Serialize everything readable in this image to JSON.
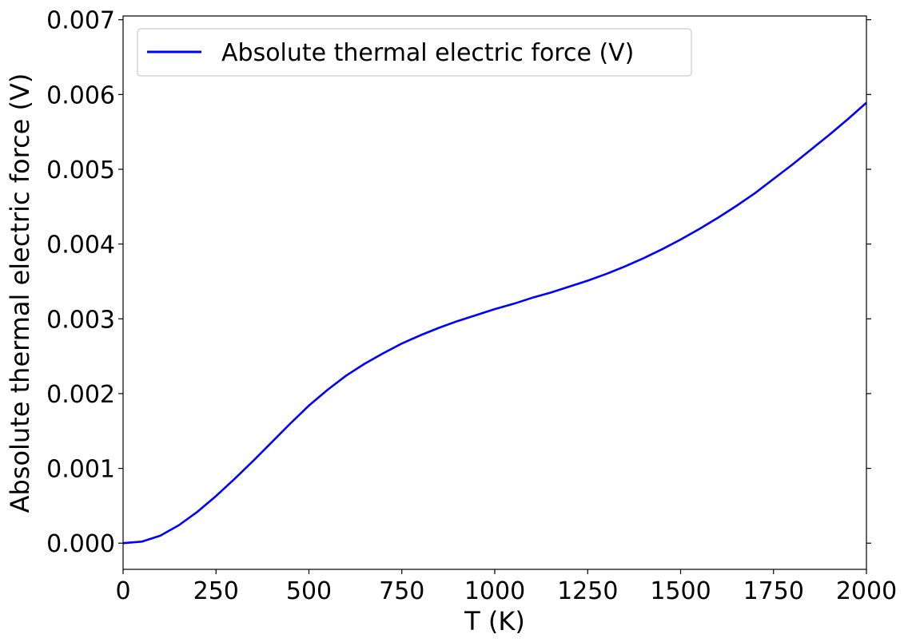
{
  "chart_data": {
    "type": "line",
    "xlabel": "T (K)",
    "ylabel": "Absolute thermal electric force (V)",
    "xlim": [
      0,
      2000
    ],
    "ylim": [
      -0.00035,
      0.00705
    ],
    "x_ticks": [
      0,
      250,
      500,
      750,
      1000,
      1250,
      1500,
      1750,
      2000
    ],
    "x_tick_labels": [
      "0",
      "250",
      "500",
      "750",
      "1000",
      "1250",
      "1500",
      "1750",
      "2000"
    ],
    "y_ticks": [
      0,
      0.001,
      0.002,
      0.003,
      0.004,
      0.005,
      0.006,
      0.007
    ],
    "y_tick_labels": [
      "0.000",
      "0.001",
      "0.002",
      "0.003",
      "0.004",
      "0.005",
      "0.006",
      "0.007"
    ],
    "grid": false,
    "legend_position": "top-left",
    "series": [
      {
        "name": "Absolute thermal electric force (V)",
        "color": "#0000ff",
        "x": [
          0,
          50,
          100,
          150,
          200,
          250,
          300,
          350,
          400,
          450,
          500,
          550,
          600,
          650,
          700,
          750,
          800,
          850,
          900,
          950,
          1000,
          1050,
          1100,
          1150,
          1200,
          1250,
          1300,
          1350,
          1400,
          1450,
          1500,
          1550,
          1600,
          1650,
          1700,
          1750,
          1800,
          1850,
          1900,
          1950,
          2000
        ],
        "y": [
          0.0,
          2e-05,
          0.0001,
          0.00024,
          0.00042,
          0.00063,
          0.00086,
          0.0011,
          0.00135,
          0.0016,
          0.00184,
          0.00205,
          0.00224,
          0.0024,
          0.00254,
          0.00267,
          0.00278,
          0.00288,
          0.00297,
          0.00305,
          0.00313,
          0.0032,
          0.00328,
          0.00335,
          0.00343,
          0.00351,
          0.0036,
          0.0037,
          0.00381,
          0.00393,
          0.00406,
          0.0042,
          0.00435,
          0.00451,
          0.00468,
          0.00487,
          0.00506,
          0.00526,
          0.00546,
          0.00567,
          0.00589
        ]
      }
    ]
  }
}
